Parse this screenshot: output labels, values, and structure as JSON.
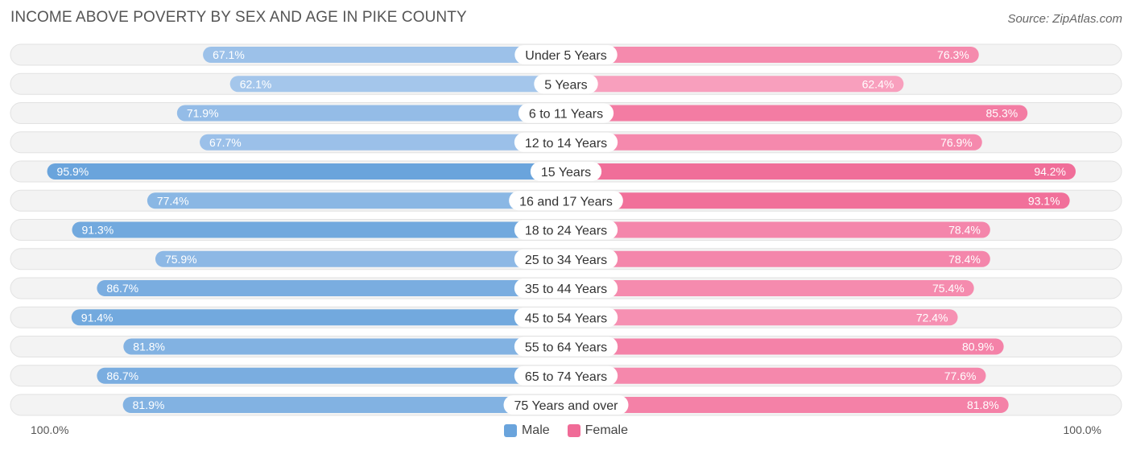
{
  "title": "INCOME ABOVE POVERTY BY SEX AND AGE IN PIKE COUNTY",
  "source": "Source: ZipAtlas.com",
  "colors": {
    "male_light": "#a8c8ec",
    "male_dark": "#6aa4dc",
    "female_light": "#f9a3c0",
    "female_dark": "#f06b97",
    "track": "#eeeeee"
  },
  "chart_data": {
    "type": "bar",
    "orientation": "horizontal-diverging",
    "categories": [
      "Under 5 Years",
      "5 Years",
      "6 to 11 Years",
      "12 to 14 Years",
      "15 Years",
      "16 and 17 Years",
      "18 to 24 Years",
      "25 to 34 Years",
      "35 to 44 Years",
      "45 to 54 Years",
      "55 to 64 Years",
      "65 to 74 Years",
      "75 Years and over"
    ],
    "series": [
      {
        "name": "Male",
        "values": [
          67.1,
          62.1,
          71.9,
          67.7,
          95.9,
          77.4,
          91.3,
          75.9,
          86.7,
          91.4,
          81.8,
          86.7,
          81.9
        ],
        "labels": [
          "67.1%",
          "62.1%",
          "71.9%",
          "67.7%",
          "95.9%",
          "77.4%",
          "91.3%",
          "75.9%",
          "86.7%",
          "91.4%",
          "81.8%",
          "86.7%",
          "81.9%"
        ]
      },
      {
        "name": "Female",
        "values": [
          76.3,
          62.4,
          85.3,
          76.9,
          94.2,
          93.1,
          78.4,
          78.4,
          75.4,
          72.4,
          80.9,
          77.6,
          81.8
        ],
        "labels": [
          "76.3%",
          "62.4%",
          "85.3%",
          "76.9%",
          "94.2%",
          "93.1%",
          "78.4%",
          "78.4%",
          "75.4%",
          "72.4%",
          "80.9%",
          "77.6%",
          "81.8%"
        ]
      }
    ],
    "xlim": [
      0,
      100
    ],
    "axis_left_label": "100.0%",
    "axis_right_label": "100.0%",
    "legend_position": "bottom-center"
  }
}
